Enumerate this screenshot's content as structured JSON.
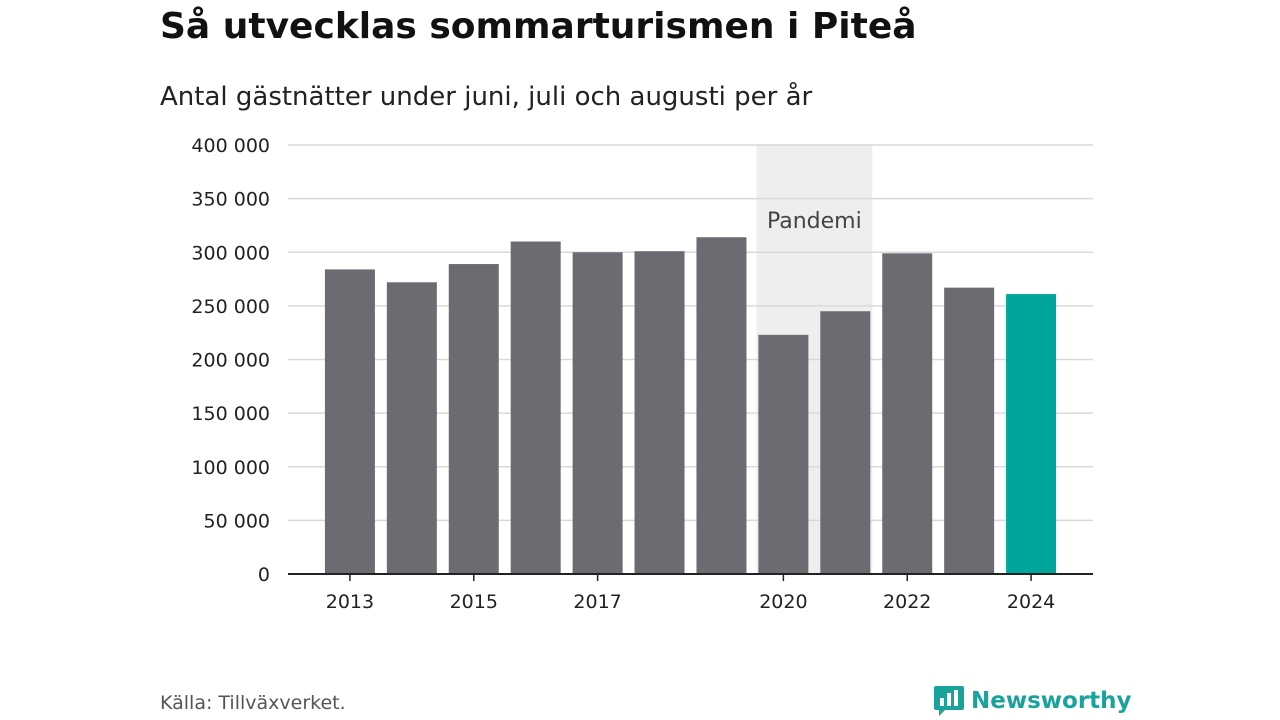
{
  "header": {
    "title": "Så utvecklas sommarturismen i Piteå",
    "subtitle": "Antal gästnätter under juni, juli och augusti per år"
  },
  "footer": {
    "source": "Källa: Tillväxverket.",
    "brand": "Newsworthy",
    "brand_icon": "newsworthy-logo-icon"
  },
  "colors": {
    "bar": "#6c6b72",
    "highlight": "#00a59b",
    "band": "#eeeeee",
    "grid": "#d9d9d9",
    "axis": "#222222"
  },
  "chart_data": {
    "type": "bar",
    "categories": [
      "2013",
      "2014",
      "2015",
      "2016",
      "2017",
      "2018",
      "2019",
      "2020",
      "2021",
      "2022",
      "2023",
      "2024"
    ],
    "values": [
      284000,
      272000,
      289000,
      310000,
      300000,
      301000,
      314000,
      223000,
      245000,
      299000,
      267000,
      261000
    ],
    "highlight_category": "2024",
    "x_tick_labels": [
      "2013",
      "2015",
      "2017",
      "2020",
      "2022",
      "2024"
    ],
    "y_ticks": [
      0,
      50000,
      100000,
      150000,
      200000,
      250000,
      300000,
      350000,
      400000
    ],
    "y_tick_labels": [
      "0",
      "50 000",
      "100 000",
      "150 000",
      "200 000",
      "250 000",
      "300 000",
      "350 000",
      "400 000"
    ],
    "ylim": [
      0,
      400000
    ],
    "grid": true,
    "xlabel": "",
    "ylabel": "",
    "annotation": {
      "label": "Pandemi",
      "categories": [
        "2020",
        "2021"
      ]
    }
  }
}
